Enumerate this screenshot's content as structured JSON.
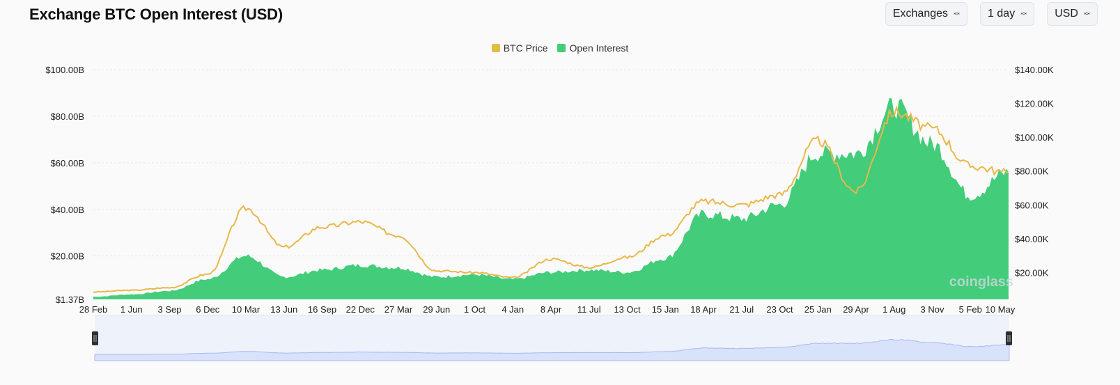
{
  "header": {
    "title": "Exchange BTC Open Interest (USD)",
    "selects": [
      {
        "value": "Exchanges"
      },
      {
        "value": "1 day"
      },
      {
        "value": "USD"
      }
    ]
  },
  "colors": {
    "btc_price": "#e8b84a",
    "open_interest": "#43cc7a",
    "navigator_fill": "#d9e2fb",
    "navigator_line": "#a9b9ee"
  },
  "watermark": "coinglass",
  "chart_data": {
    "type": "area",
    "title": "Exchange BTC Open Interest (USD)",
    "legend_position": "top-center",
    "grid": true,
    "x_tick_labels": [
      "28 Feb",
      "1 Jun",
      "3 Sep",
      "6 Dec",
      "10 Mar",
      "13 Jun",
      "16 Sep",
      "22 Dec",
      "27 Mar",
      "29 Jun",
      "1 Oct",
      "4 Jan",
      "8 Apr",
      "11 Jul",
      "13 Oct",
      "15 Jan",
      "18 Apr",
      "21 Jul",
      "23 Oct",
      "25 Jan",
      "29 Apr",
      "1 Aug",
      "3 Nov",
      "5 Feb",
      "10 May"
    ],
    "y_left": {
      "ticks": [
        "$100.00B",
        "$80.00B",
        "$60.00B",
        "$40.00B",
        "$20.00B",
        "$1.37B"
      ],
      "range": [
        1.37,
        100
      ],
      "unit": "B USD"
    },
    "y_right": {
      "ticks": [
        "$140.00K",
        "$120.00K",
        "$100.00K",
        "$80.00K",
        "$60.00K",
        "$40.00K",
        "$20.00K"
      ],
      "range": [
        0,
        140
      ],
      "unit": "K USD"
    },
    "series": [
      {
        "name": "BTC Price",
        "axis": "right",
        "chart_type": "line",
        "x": [
          "28 Feb",
          "1 Jun",
          "3 Sep",
          "6 Dec",
          "10 Mar",
          "13 Jun",
          "16 Sep",
          "22 Dec",
          "27 Mar",
          "29 Jun",
          "1 Oct",
          "4 Jan",
          "8 Apr",
          "11 Jul",
          "13 Oct",
          "15 Jan",
          "18 Apr",
          "21 Jul",
          "23 Oct",
          "25 Jan",
          "29 Apr",
          "1 Aug",
          "3 Nov",
          "5 Feb",
          "10 May"
        ],
        "values": [
          8.5,
          9.5,
          11,
          19,
          58,
          35,
          47,
          50,
          42,
          21,
          20,
          17,
          28,
          23,
          29,
          42,
          62,
          60,
          66,
          98,
          68,
          115,
          105,
          83,
          79
        ]
      },
      {
        "name": "Open Interest",
        "axis": "left",
        "chart_type": "area",
        "x": [
          "28 Feb",
          "1 Jun",
          "3 Sep",
          "6 Dec",
          "10 Mar",
          "13 Jun",
          "16 Sep",
          "22 Dec",
          "27 Mar",
          "29 Jun",
          "1 Oct",
          "4 Jan",
          "8 Apr",
          "11 Jul",
          "13 Oct",
          "15 Jan",
          "18 Apr",
          "21 Jul",
          "23 Oct",
          "25 Jan",
          "29 Apr",
          "1 Aug",
          "3 Nov",
          "5 Feb",
          "10 May"
        ],
        "values": [
          2.5,
          3.5,
          5,
          10,
          20,
          11,
          14,
          16,
          15,
          11,
          12,
          10,
          13,
          14,
          13,
          19,
          38,
          36,
          42,
          64,
          64,
          84,
          68,
          46,
          56
        ]
      }
    ]
  }
}
